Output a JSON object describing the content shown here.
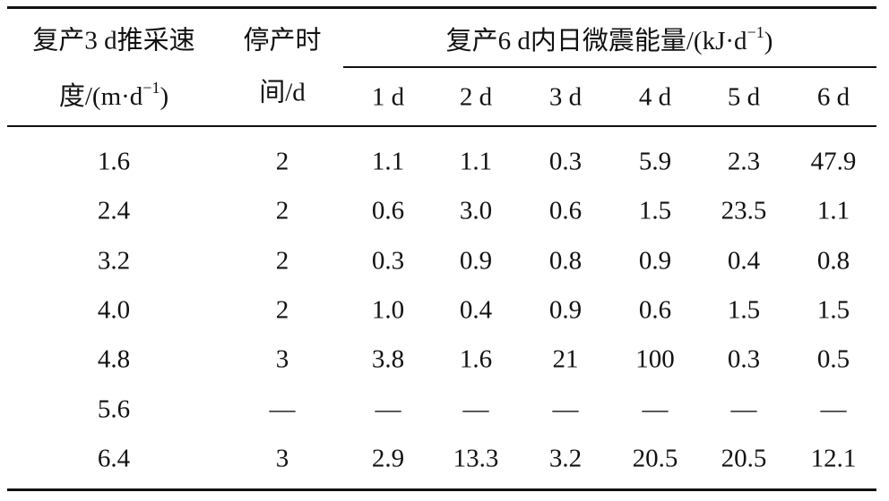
{
  "table": {
    "header": {
      "speed": {
        "line1": "复产3 d推采速",
        "line2": "度/(m·d",
        "sup": "−1",
        "close": ")"
      },
      "stop": {
        "line1": "停产时",
        "line2": "间/d"
      },
      "energy": {
        "text": "复产6 d内日微震能量/(kJ·d",
        "sup": "−1",
        "close": ")"
      },
      "days": [
        "1 d",
        "2 d",
        "3 d",
        "4 d",
        "5 d",
        "6 d"
      ]
    },
    "rows": [
      [
        "1.6",
        "2",
        "1.1",
        "1.1",
        "0.3",
        "5.9",
        "2.3",
        "47.9"
      ],
      [
        "2.4",
        "2",
        "0.6",
        "3.0",
        "0.6",
        "1.5",
        "23.5",
        "1.1"
      ],
      [
        "3.2",
        "2",
        "0.3",
        "0.9",
        "0.8",
        "0.9",
        "0.4",
        "0.8"
      ],
      [
        "4.0",
        "2",
        "1.0",
        "0.4",
        "0.9",
        "0.6",
        "1.5",
        "1.5"
      ],
      [
        "4.8",
        "3",
        "3.8",
        "1.6",
        "21",
        "100",
        "0.3",
        "0.5"
      ],
      [
        "5.6",
        "—",
        "—",
        "—",
        "—",
        "—",
        "—",
        "—"
      ],
      [
        "6.4",
        "3",
        "2.9",
        "13.3",
        "3.2",
        "20.5",
        "20.5",
        "12.1"
      ]
    ]
  }
}
